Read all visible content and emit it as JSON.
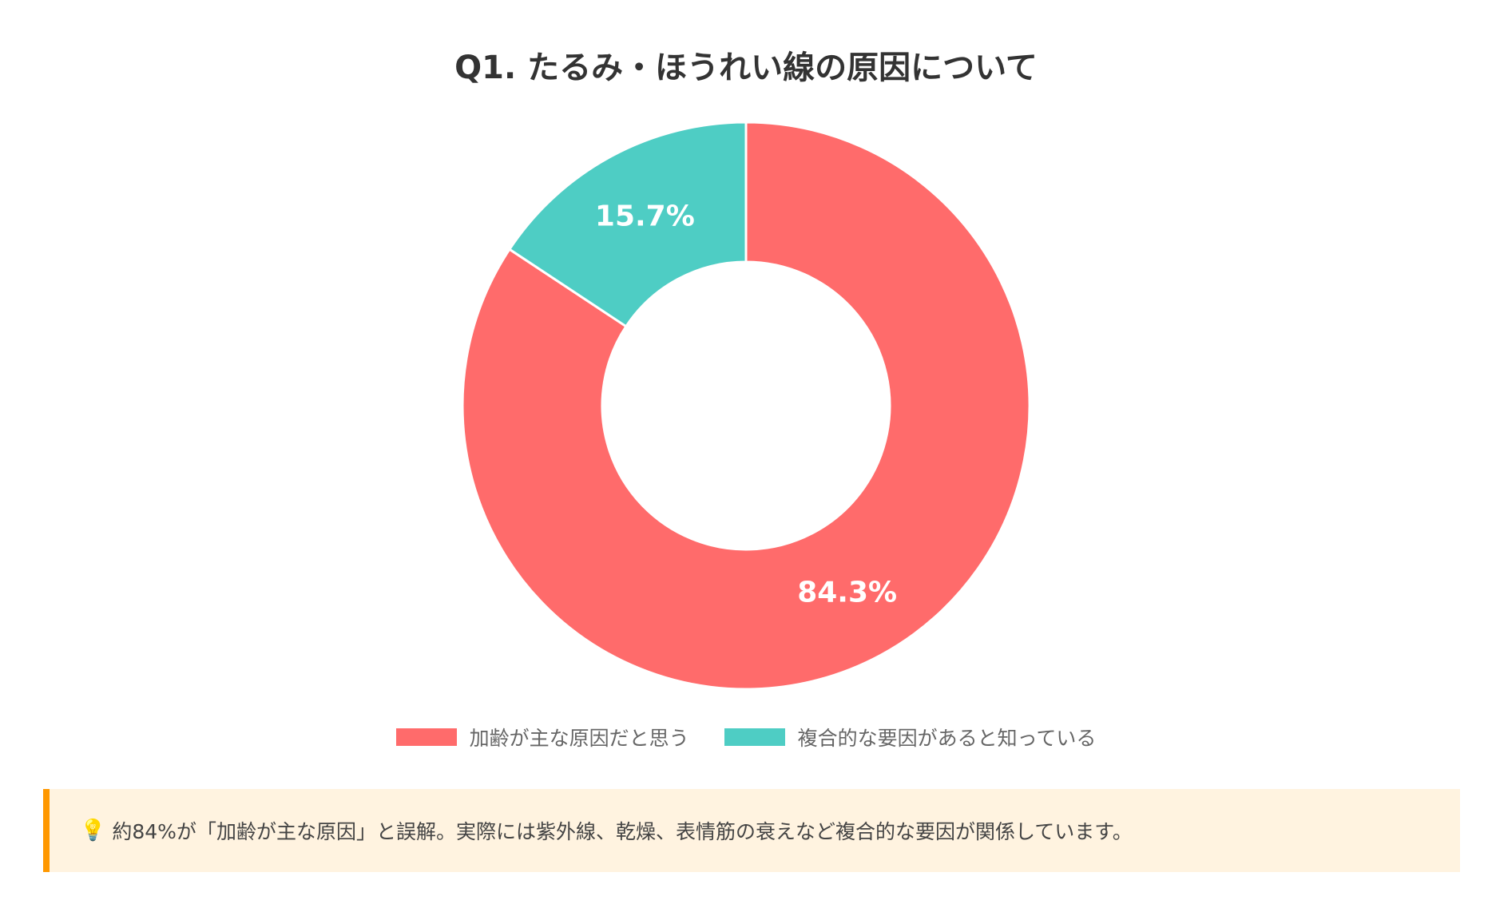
{
  "chart_data": {
    "type": "pie",
    "variant": "donut",
    "title": "Q1. たるみ・ほうれい線の原因について",
    "categories": [
      "加齢が主な原因だと思う",
      "複合的な要因があると知っている"
    ],
    "values": [
      84.3,
      15.7
    ],
    "value_labels": [
      "84.3%",
      "15.7%"
    ],
    "colors": [
      "#ff6b6b",
      "#4ecdc4"
    ],
    "legend_position": "bottom"
  },
  "note": {
    "icon": "lightbulb-icon",
    "icon_glyph": "💡",
    "text": "約84%が「加齢が主な原因」と誤解。実際には紫外線、乾燥、表情筋の衰えなど複合的な要因が関係しています。",
    "accent_color": "#ff9800",
    "background_color": "#fff3e0"
  }
}
